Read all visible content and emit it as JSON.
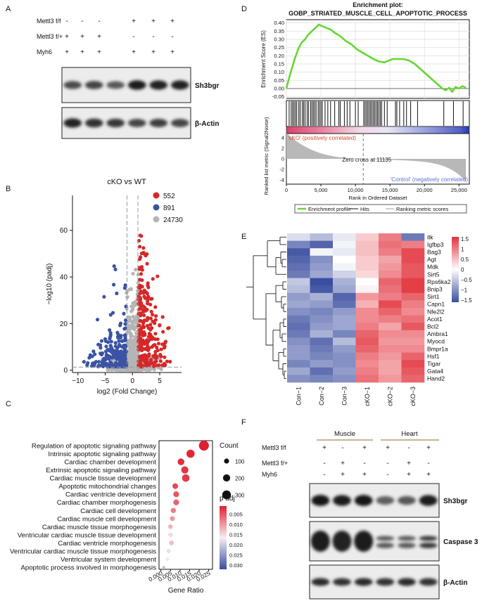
{
  "panel_a": {
    "letter": "A",
    "rows": [
      {
        "label": "Mettl3 f/f",
        "signs": [
          "-",
          "-",
          "-",
          "+",
          "+",
          "+"
        ]
      },
      {
        "label": "Mettl3 f/+",
        "signs": [
          "+",
          "+",
          "+",
          "-",
          "-",
          "-"
        ]
      },
      {
        "label": "Myh6",
        "signs": [
          "+",
          "+",
          "+",
          "+",
          "+",
          "+"
        ]
      }
    ],
    "blots": [
      {
        "label": "Sh3bgr",
        "intensity": [
          0.55,
          0.6,
          0.45,
          0.9,
          0.85,
          0.85
        ]
      },
      {
        "label": "β-Actin",
        "intensity": [
          0.85,
          0.75,
          0.7,
          0.6,
          0.65,
          0.6
        ]
      }
    ]
  },
  "panel_b": {
    "letter": "B",
    "chart_data": {
      "type": "scatter",
      "title": "cKO vs WT",
      "xlabel": "log2 (Fold Change)",
      "ylabel": "−log10 (padj)",
      "xlim": [
        -11,
        9
      ],
      "ylim": [
        -1,
        75
      ],
      "xticks": [
        "−10",
        "−5",
        "0",
        "5"
      ],
      "xtick_values": [
        -10,
        -5,
        0,
        5
      ],
      "yticks": [
        "0",
        "20",
        "40",
        "60"
      ],
      "ytick_values": [
        0,
        20,
        40,
        60
      ],
      "thresholds": {
        "x": [
          -1,
          1
        ],
        "y": 1.3
      },
      "legend": [
        {
          "label": "552",
          "color": "#d62728"
        },
        {
          "label": "891",
          "color": "#3a53a4"
        },
        {
          "label": "24730",
          "color": "#b5b5b5"
        }
      ]
    }
  },
  "panel_c": {
    "letter": "C",
    "chart_data": {
      "type": "scatter",
      "xlabel": "Gene Ratio",
      "xlim": [
        -0.001,
        0.027
      ],
      "xticks": [
        "0.000",
        "0.005",
        "0.010",
        "0.015",
        "0.020",
        "0.025"
      ],
      "xtick_values": [
        0,
        0.005,
        0.01,
        0.015,
        0.02,
        0.025
      ],
      "terms": [
        {
          "term": "Regulation of apoptotic signaling pathway",
          "ratio": 0.0225,
          "count": 390,
          "padj": 0.001
        },
        {
          "term": "Intrinsic apoptotic signaling pathway",
          "ratio": 0.0155,
          "count": 260,
          "padj": 0.0015
        },
        {
          "term": "Cardiac chamber development",
          "ratio": 0.0105,
          "count": 175,
          "padj": 0.002
        },
        {
          "term": "Extrinsic apoptotic signaling pathway",
          "ratio": 0.0125,
          "count": 205,
          "padj": 0.0025
        },
        {
          "term": "Cardiac muscle tissue development",
          "ratio": 0.013,
          "count": 220,
          "padj": 0.003
        },
        {
          "term": "Apoptotic mitochondrial changes",
          "ratio": 0.0075,
          "count": 125,
          "padj": 0.004
        },
        {
          "term": "Cardiac ventricle development",
          "ratio": 0.008,
          "count": 130,
          "padj": 0.005
        },
        {
          "term": "Cardiac chamber morphogenesis",
          "ratio": 0.008,
          "count": 130,
          "padj": 0.006
        },
        {
          "term": "Cardiac cell development",
          "ratio": 0.0065,
          "count": 105,
          "padj": 0.008
        },
        {
          "term": "Cardiac muscle cell development",
          "ratio": 0.006,
          "count": 95,
          "padj": 0.01
        },
        {
          "term": "Cardiac muscle tissue morphogenesis",
          "ratio": 0.005,
          "count": 80,
          "padj": 0.012
        },
        {
          "term": "Ventricular cardiac muscle tissue development",
          "ratio": 0.005,
          "count": 80,
          "padj": 0.015
        },
        {
          "term": "Cardiac ventricle morphogenesis",
          "ratio": 0.0055,
          "count": 90,
          "padj": 0.013
        },
        {
          "term": "Ventricular cardiac muscle tissue morphogenesis",
          "ratio": 0.004,
          "count": 65,
          "padj": 0.018
        },
        {
          "term": "Ventricular system development",
          "ratio": 0.0035,
          "count": 55,
          "padj": 0.016
        },
        {
          "term": "Apoptotic process involved in morphogenesis",
          "ratio": 0.0015,
          "count": 25,
          "padj": 0.022
        }
      ],
      "size_legend": {
        "title": "Count",
        "values": [
          "100",
          "200",
          "300"
        ],
        "size_values": [
          100,
          200,
          300
        ]
      },
      "color_legend": {
        "title": "p adj",
        "values": [
          "0.005",
          "0.010",
          "0.015",
          "0.020",
          "0.025",
          "0.030"
        ],
        "range": [
          0.001,
          0.032
        ],
        "low_color": "#e02030",
        "high_color": "#3a4fa0"
      }
    }
  },
  "panel_d": {
    "letter": "D",
    "chart_data": {
      "type": "line",
      "title": "Enrichment plot:",
      "subtitle": "GOBP_STRIATED_MUSCLE_CELL_APOPTOTIC_PROCESS",
      "ylabel_top": "Enrichment Score (ES)",
      "ylabel_bottom": "Ranked list metric (Signal2Noise)",
      "xlabel": "Rank in Ordered Dataset",
      "xlim": [
        0,
        26500
      ],
      "xticks": [
        "0",
        "5,000",
        "10,000",
        "15,000",
        "20,000",
        "25,000"
      ],
      "xtick_values": [
        0,
        5000,
        10000,
        15000,
        20000,
        25000
      ],
      "es_ylim": [
        -0.06,
        0.42
      ],
      "es_yticks": [
        "0.40",
        "0.35",
        "0.30",
        "0.25",
        "0.20",
        "0.15",
        "0.10",
        "0.05",
        "0.00",
        "-0.05"
      ],
      "es_ytick_values": [
        0.4,
        0.35,
        0.3,
        0.25,
        0.2,
        0.15,
        0.1,
        0.05,
        0.0,
        -0.05
      ],
      "es_curve": [
        [
          0,
          0
        ],
        [
          300,
          0.05
        ],
        [
          700,
          0.11
        ],
        [
          1200,
          0.18
        ],
        [
          1700,
          0.24
        ],
        [
          2200,
          0.28
        ],
        [
          2700,
          0.3
        ],
        [
          3200,
          0.33
        ],
        [
          3700,
          0.35
        ],
        [
          4200,
          0.37
        ],
        [
          4700,
          0.39
        ],
        [
          5200,
          0.38
        ],
        [
          5800,
          0.37
        ],
        [
          6400,
          0.36
        ],
        [
          7000,
          0.34
        ],
        [
          7800,
          0.32
        ],
        [
          8600,
          0.29
        ],
        [
          9400,
          0.27
        ],
        [
          10200,
          0.24
        ],
        [
          11000,
          0.22
        ],
        [
          11800,
          0.2
        ],
        [
          12600,
          0.18
        ],
        [
          13400,
          0.165
        ],
        [
          14200,
          0.16
        ],
        [
          14800,
          0.17
        ],
        [
          15400,
          0.18
        ],
        [
          16200,
          0.18
        ],
        [
          17000,
          0.18
        ],
        [
          17800,
          0.17
        ],
        [
          18600,
          0.15
        ],
        [
          19400,
          0.12
        ],
        [
          20200,
          0.09
        ],
        [
          21000,
          0.06
        ],
        [
          21800,
          0.03
        ],
        [
          22600,
          0.0
        ],
        [
          23100,
          -0.01
        ],
        [
          23600,
          0.005
        ],
        [
          24000,
          -0.02
        ],
        [
          24500,
          0.01
        ],
        [
          25000,
          0.0
        ],
        [
          25500,
          0.015
        ],
        [
          26000,
          0.005
        ]
      ],
      "hits": [
        400,
        700,
        900,
        1100,
        1300,
        1500,
        1800,
        2000,
        2300,
        2500,
        2700,
        3000,
        3200,
        3500,
        3700,
        3900,
        4100,
        4300,
        4600,
        4800,
        5000,
        5200,
        5600,
        6000,
        6400,
        7000,
        7600,
        7800,
        8400,
        8800,
        9200,
        10000,
        10400,
        11200,
        11400,
        11600,
        11800,
        12000,
        12200,
        12400,
        12600,
        12800,
        13000,
        13200,
        13400,
        13600,
        13800,
        14200,
        14600,
        15800,
        16000,
        16400,
        17000,
        17400,
        18000,
        19000,
        22800,
        24200,
        25600
      ],
      "zero_cross": 11135,
      "rank_ylim": [
        -4.8,
        4.8
      ],
      "rank_yticks": [
        "4",
        "2",
        "0",
        "-2",
        "-4"
      ],
      "rank_ytick_values": [
        4,
        2,
        0,
        -2,
        -4
      ],
      "annotations": {
        "positive": "'cKO' (positively correlated)",
        "zero_cross": "Zero cross at 11135",
        "negative": "'Control' (negatively correlated)"
      },
      "legend": [
        "Enrichment profile",
        "Hits",
        "Ranking metric scores"
      ],
      "colors": {
        "profile": "#66d633",
        "hits": "#111111",
        "metric": "#b8b8b8",
        "pos_text": "#d84a2c",
        "neg_text": "#5a6fd0"
      }
    }
  },
  "panel_e": {
    "letter": "E",
    "chart_data": {
      "type": "heatmap",
      "columns": [
        "Con−1",
        "Con−2",
        "Con−3",
        "cKO−1",
        "cKO−2",
        "cKO−3"
      ],
      "rows": [
        "Ilk",
        "Igfbp3",
        "Bag3",
        "Agt",
        "Mdk",
        "Sirt5",
        "Rps6ka2",
        "Bnip3",
        "Sirt1",
        "Capn1",
        "Nfe2l2",
        "Acot1",
        "Bcl2",
        "Ambra1",
        "Myocd",
        "Bmpr1a",
        "Hsf1",
        "Tigar",
        "Gata4",
        "Hand2"
      ],
      "values": [
        [
          -0.3,
          -0.6,
          -0.2,
          0.4,
          1.0,
          -1.2
        ],
        [
          -1.1,
          -1.4,
          -0.1,
          0.5,
          1.1,
          1.0
        ],
        [
          -1.5,
          -0.1,
          -0.2,
          0.5,
          1.0,
          1.4
        ],
        [
          -1.4,
          -1.0,
          0.0,
          0.4,
          0.7,
          1.4
        ],
        [
          -1.3,
          -0.9,
          -0.1,
          0.4,
          0.8,
          1.3
        ],
        [
          -1.2,
          -0.8,
          -0.4,
          0.3,
          0.9,
          1.3
        ],
        [
          -0.5,
          -1.6,
          -0.7,
          0.0,
          1.2,
          1.5
        ],
        [
          -0.6,
          -1.5,
          -0.8,
          0.1,
          1.1,
          1.5
        ],
        [
          -0.9,
          -0.7,
          -1.4,
          0.8,
          1.0,
          1.2
        ],
        [
          -0.8,
          -0.9,
          -1.3,
          0.6,
          1.4,
          1.0
        ],
        [
          -1.0,
          -1.1,
          -0.9,
          0.9,
          1.2,
          0.9
        ],
        [
          -1.2,
          -1.0,
          -0.8,
          0.9,
          1.0,
          1.1
        ],
        [
          -1.3,
          -0.9,
          -0.8,
          1.0,
          0.7,
          1.3
        ],
        [
          -1.2,
          -0.7,
          -1.1,
          1.2,
          0.9,
          0.9
        ],
        [
          -1.0,
          -1.3,
          -0.6,
          1.3,
          0.8,
          0.8
        ],
        [
          -0.9,
          -1.2,
          -0.9,
          1.2,
          0.9,
          0.9
        ],
        [
          -0.9,
          -1.1,
          -1.0,
          1.0,
          0.8,
          1.2
        ],
        [
          -1.1,
          -0.9,
          -1.0,
          0.9,
          0.7,
          1.4
        ],
        [
          -0.8,
          -1.3,
          -0.9,
          1.0,
          0.7,
          1.3
        ],
        [
          -1.0,
          -1.1,
          -1.0,
          1.1,
          0.8,
          1.2
        ]
      ],
      "color_scale": {
        "min": -1.6,
        "max": 1.6,
        "low": "#3b4fa0",
        "mid": "#ffffff",
        "high": "#e2313b"
      },
      "legend_ticks": [
        "1.5",
        "1",
        "0.5",
        "0",
        "−0.5",
        "−1",
        "−1.5"
      ],
      "legend_tick_values": [
        1.5,
        1,
        0.5,
        0,
        -0.5,
        -1,
        -1.5
      ]
    }
  },
  "panel_f": {
    "letter": "F",
    "groups": [
      "Muscle",
      "Heart"
    ],
    "rows": [
      {
        "label": "Mettl3 f/f",
        "signs": [
          "+",
          "-",
          "+",
          "+",
          "-",
          "+"
        ]
      },
      {
        "label": "Mettl3 f/+",
        "signs": [
          "-",
          "+",
          "-",
          "-",
          "+",
          "-"
        ]
      },
      {
        "label": "Myh6",
        "signs": [
          "-",
          "+",
          "+",
          "-",
          "+",
          "+"
        ]
      }
    ],
    "blots": [
      {
        "label": "Sh3bgr",
        "intensity": [
          0.95,
          0.9,
          0.95,
          0.4,
          0.45,
          0.9
        ]
      },
      {
        "label": "Caspase 3",
        "intensity": [
          0.95,
          0.9,
          0.95,
          0.45,
          0.45,
          0.7
        ]
      },
      {
        "label": "β-Actin",
        "intensity": [
          0.8,
          0.75,
          0.8,
          0.75,
          0.8,
          0.75
        ]
      }
    ]
  }
}
